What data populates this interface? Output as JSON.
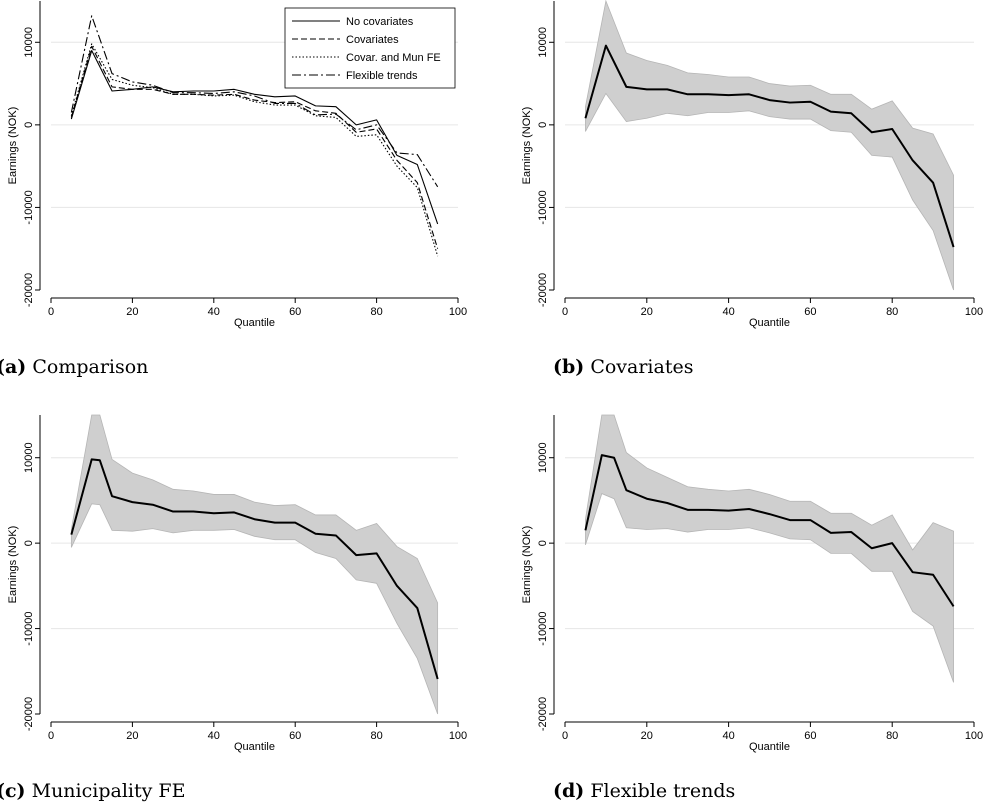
{
  "charts": [
    {
      "caption_label": "(a)",
      "caption_text": "Comparison",
      "xlabel": "Quantile",
      "ylabel": "Earnings (NOK)",
      "type": "line",
      "xlim": [
        0,
        100
      ],
      "ylim": [
        -20000,
        15000
      ],
      "xticks": [
        0,
        20,
        40,
        60,
        80,
        100
      ],
      "yticks": [
        -20000,
        -10000,
        0,
        10000
      ],
      "legend_position": "top-right",
      "series": [
        {
          "name": "No covariates",
          "dash": "solid",
          "x": [
            5,
            10,
            15,
            20,
            25,
            30,
            35,
            40,
            45,
            50,
            55,
            60,
            65,
            70,
            75,
            80,
            85,
            90,
            95
          ],
          "y": [
            700,
            9000,
            4100,
            4300,
            4600,
            4000,
            4100,
            4100,
            4300,
            3700,
            3400,
            3500,
            2300,
            2200,
            0,
            600,
            -3700,
            -4800,
            -12000
          ]
        },
        {
          "name": "Covariates",
          "dash": "dashed",
          "x": [
            5,
            10,
            15,
            20,
            25,
            30,
            35,
            40,
            45,
            50,
            55,
            60,
            65,
            70,
            75,
            80,
            85,
            90,
            95
          ],
          "y": [
            900,
            9500,
            4600,
            4300,
            4300,
            3700,
            3700,
            3600,
            3700,
            3000,
            2700,
            2800,
            1700,
            1400,
            -900,
            -500,
            -4300,
            -7000,
            -15000
          ]
        },
        {
          "name": "Covar. and Mun FE",
          "dash": "dotted",
          "x": [
            5,
            10,
            15,
            20,
            25,
            30,
            35,
            40,
            45,
            50,
            55,
            60,
            65,
            70,
            75,
            80,
            85,
            90,
            95
          ],
          "y": [
            1100,
            9800,
            5500,
            4800,
            4500,
            3700,
            3700,
            3500,
            3600,
            2800,
            2400,
            2400,
            1100,
            900,
            -1400,
            -1200,
            -5000,
            -7600,
            -15900
          ]
        },
        {
          "name": "Flexible trends",
          "dash": "dashdot",
          "x": [
            5,
            10,
            15,
            20,
            25,
            30,
            35,
            40,
            45,
            50,
            55,
            60,
            65,
            70,
            75,
            80,
            85,
            90,
            95
          ],
          "y": [
            1500,
            13200,
            6200,
            5200,
            4800,
            3900,
            3900,
            3800,
            4000,
            3500,
            2600,
            2600,
            1200,
            1300,
            -600,
            0,
            -3400,
            -3600,
            -7500
          ]
        }
      ]
    },
    {
      "caption_label": "(b)",
      "caption_text": "Covariates",
      "xlabel": "Quantile",
      "ylabel": "Earnings (NOK)",
      "type": "area",
      "xlim": [
        0,
        100
      ],
      "ylim": [
        -20000,
        15000
      ],
      "xticks": [
        0,
        20,
        40,
        60,
        80,
        100
      ],
      "yticks": [
        -20000,
        -10000,
        0,
        10000
      ],
      "x": [
        5,
        10,
        15,
        20,
        25,
        30,
        35,
        40,
        45,
        50,
        55,
        60,
        65,
        70,
        75,
        80,
        85,
        90,
        95
      ],
      "estimate": [
        800,
        9600,
        4600,
        4300,
        4300,
        3700,
        3700,
        3600,
        3700,
        3000,
        2700,
        2800,
        1600,
        1400,
        -900,
        -500,
        -4300,
        -7000,
        -14800
      ],
      "lower": [
        -800,
        3800,
        400,
        800,
        1400,
        1100,
        1500,
        1500,
        1700,
        1000,
        700,
        700,
        -700,
        -900,
        -3700,
        -3900,
        -9100,
        -12800,
        -20000
      ],
      "upper": [
        2200,
        15000,
        8700,
        7800,
        7200,
        6300,
        6100,
        5800,
        5800,
        5000,
        4700,
        4800,
        3700,
        3700,
        1900,
        2900,
        -400,
        -1100,
        -6100
      ]
    },
    {
      "caption_label": "(c)",
      "caption_text": "Municipality FE",
      "xlabel": "Quantile",
      "ylabel": "Earnings (NOK)",
      "type": "area",
      "xlim": [
        0,
        100
      ],
      "ylim": [
        -20000,
        15000
      ],
      "xticks": [
        0,
        20,
        40,
        60,
        80,
        100
      ],
      "yticks": [
        -20000,
        -10000,
        0,
        10000
      ],
      "x": [
        5,
        10,
        12,
        15,
        20,
        25,
        30,
        35,
        40,
        45,
        50,
        55,
        60,
        65,
        70,
        75,
        80,
        85,
        90,
        95
      ],
      "estimate": [
        1000,
        9800,
        9700,
        5500,
        4800,
        4500,
        3700,
        3700,
        3500,
        3600,
        2800,
        2400,
        2400,
        1100,
        900,
        -1400,
        -1200,
        -5000,
        -7600,
        -15900
      ],
      "lower": [
        -500,
        4600,
        4500,
        1500,
        1400,
        1700,
        1200,
        1500,
        1500,
        1600,
        800,
        400,
        400,
        -1100,
        -1800,
        -4300,
        -4700,
        -9400,
        -13500,
        -20000
      ],
      "upper": [
        1600,
        15000,
        15000,
        9800,
        8200,
        7400,
        6300,
        6100,
        5700,
        5700,
        4800,
        4400,
        4500,
        3300,
        3300,
        1500,
        2300,
        -400,
        -1800,
        -7000
      ]
    },
    {
      "caption_label": "(d)",
      "caption_text": "Flexible trends",
      "xlabel": "Quantile",
      "ylabel": "Earnings (NOK)",
      "type": "area",
      "xlim": [
        0,
        100
      ],
      "ylim": [
        -20000,
        15000
      ],
      "xticks": [
        0,
        20,
        40,
        60,
        80,
        100
      ],
      "yticks": [
        -20000,
        -10000,
        0,
        10000
      ],
      "x": [
        5,
        9,
        12,
        15,
        20,
        25,
        30,
        35,
        40,
        45,
        50,
        55,
        60,
        65,
        70,
        75,
        80,
        85,
        90,
        95
      ],
      "estimate": [
        1500,
        10300,
        10000,
        6200,
        5200,
        4700,
        3900,
        3900,
        3800,
        4000,
        3400,
        2700,
        2700,
        1200,
        1300,
        -600,
        0,
        -3400,
        -3700,
        -7400
      ],
      "lower": [
        -200,
        5800,
        5200,
        1800,
        1600,
        1700,
        1300,
        1600,
        1600,
        1800,
        1200,
        500,
        400,
        -1200,
        -1200,
        -3300,
        -3300,
        -8000,
        -9700,
        -16300
      ],
      "upper": [
        2800,
        15000,
        15000,
        10600,
        8800,
        7700,
        6600,
        6300,
        6100,
        6300,
        5700,
        4900,
        4900,
        3500,
        3500,
        2100,
        3300,
        -800,
        2400,
        1400
      ]
    }
  ]
}
